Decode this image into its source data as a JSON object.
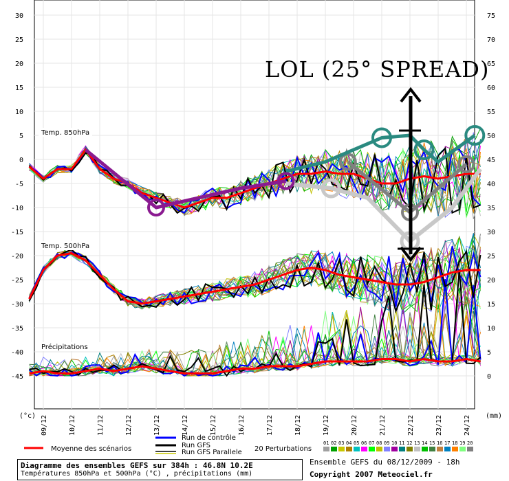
{
  "chart_data": {
    "type": "line",
    "title": "",
    "x_labels": [
      "09/12",
      "10/12",
      "11/12",
      "12/12",
      "13/12",
      "14/12",
      "15/12",
      "16/12",
      "17/12",
      "18/12",
      "19/12",
      "20/12",
      "21/12",
      "22/12",
      "23/12",
      "24/12"
    ],
    "left_axis": {
      "unit": "(°c)",
      "ticks": [
        30,
        25,
        20,
        15,
        10,
        5,
        0,
        -5,
        -10,
        -15,
        -20,
        -25,
        -30,
        -35,
        -40,
        -45
      ],
      "ylim": [
        -45,
        30
      ]
    },
    "right_axis": {
      "unit": "(mm)",
      "ticks": [
        75,
        70,
        65,
        60,
        55,
        50,
        45,
        40,
        35,
        30,
        25,
        20,
        15,
        10,
        5,
        0
      ],
      "ylim": [
        0,
        75
      ]
    },
    "section_labels": {
      "t850": "Temp. 850hPa",
      "t500": "Temp. 500hPa",
      "precip": "Précipitations"
    },
    "annotation": "LOL (25° SPREAD)",
    "x_grid_days": [
      9,
      10,
      11,
      12,
      13,
      14,
      15,
      16,
      17,
      18,
      19,
      20,
      21,
      22,
      23,
      24
    ],
    "series": {
      "t850_mean": {
        "x": [
          8.5,
          9,
          9.5,
          10,
          10.5,
          11,
          11.5,
          12,
          12.5,
          13,
          13.5,
          14,
          14.5,
          15,
          15.5,
          16,
          16.5,
          17,
          17.5,
          18,
          18.5,
          19,
          19.5,
          20,
          20.5,
          21,
          21.5,
          22,
          22.5,
          23,
          23.5,
          24,
          24.5
        ],
        "y": [
          -1.5,
          -4,
          -2,
          -2,
          2,
          -2,
          -4,
          -5,
          -7,
          -8,
          -9,
          -10,
          -9,
          -8,
          -8,
          -7,
          -6,
          -5,
          -4,
          -3,
          -3,
          -2.5,
          -3,
          -3,
          -4,
          -5,
          -5,
          -4,
          -3.5,
          -4,
          -3.5,
          -3,
          -3
        ]
      },
      "t500_mean": {
        "x": [
          8.5,
          9,
          9.5,
          10,
          10.5,
          11,
          11.5,
          12,
          12.5,
          13,
          13.5,
          14,
          14.5,
          15,
          15.5,
          16,
          16.5,
          17,
          17.5,
          18,
          18.5,
          19,
          19.5,
          20,
          20.5,
          21,
          21.5,
          22,
          22.5,
          23,
          23.5,
          24,
          24.5
        ],
        "y": [
          -29,
          -23,
          -20,
          -19.5,
          -21,
          -24,
          -27,
          -29.5,
          -30,
          -29.5,
          -29,
          -28.5,
          -28,
          -27.5,
          -27,
          -26.5,
          -26,
          -25,
          -24,
          -23,
          -22.5,
          -23,
          -24,
          -24.5,
          -25,
          -25.5,
          -26,
          -26,
          -25.5,
          -24.5,
          -23.5,
          -23,
          -23
        ]
      },
      "precip_mean": {
        "x": [
          8.5,
          9,
          9.5,
          10,
          10.5,
          11,
          11.5,
          12,
          12.5,
          13,
          13.5,
          14,
          14.5,
          15,
          15.5,
          16,
          16.5,
          17,
          17.5,
          18,
          18.5,
          19,
          19.5,
          20,
          20.5,
          21,
          21.5,
          22,
          22.5,
          23,
          23.5,
          24,
          24.5
        ],
        "y": [
          0.5,
          1,
          0.5,
          0.5,
          1,
          1.5,
          1,
          1.5,
          2,
          1.5,
          1,
          0.5,
          0.5,
          0.5,
          1,
          1.5,
          1.5,
          2,
          2,
          2,
          2.5,
          3,
          3,
          3,
          3,
          3.5,
          3.5,
          3,
          3.5,
          3,
          3,
          3.5,
          3
        ]
      },
      "annot_purple": {
        "x": [
          10.5,
          13,
          16,
          17.6
        ],
        "y": [
          2,
          -10,
          -6,
          -4.5
        ]
      },
      "annot_teal": {
        "x": [
          17.6,
          19,
          21,
          22,
          22.5,
          23,
          24.3
        ],
        "y": [
          -2.5,
          -0.5,
          4.5,
          5,
          2,
          -0.5,
          5
        ]
      },
      "annot_gray_dark": {
        "x": [
          19.8,
          22,
          24
        ],
        "y": [
          -0.5,
          -11,
          -1
        ]
      },
      "annot_gray_light": {
        "x": [
          17.6,
          19.2,
          20.5,
          22,
          23.5,
          24.5
        ],
        "y": [
          -5,
          -6,
          -8,
          -17,
          -10,
          -2
        ]
      }
    },
    "ensemble_seed": 12345
  },
  "legend": {
    "mean": "Moyenne des scénarios",
    "control": "Run de contrôle",
    "gfs": "Run GFS",
    "gfs_parallel": "Run GFS Parallele",
    "perturb_count": "20 Perturbations",
    "perturb_ids": [
      "01",
      "02",
      "03",
      "04",
      "05",
      "06",
      "07",
      "08",
      "09",
      "10",
      "11",
      "12",
      "13",
      "14",
      "15",
      "16",
      "17",
      "18",
      "19",
      "20"
    ],
    "perturb_colors": [
      "#a0a0a0",
      "#00a000",
      "#c8c800",
      "#b08000",
      "#00c0c0",
      "#ff00ff",
      "#00ff00",
      "#c0c000",
      "#8080ff",
      "#a000a0",
      "#008080",
      "#808000",
      "#c0c0c0",
      "#00c000",
      "#408040",
      "#c08040",
      "#0080c0",
      "#ff8000",
      "#80ff80",
      "#808080"
    ]
  },
  "footer": {
    "line1": "Diagramme des ensembles GEFS sur 384h : 46.8N 10.2E",
    "line2": "Températures 850hPa et 500hPa (°C) , précipitations (mm)",
    "ens_label": "Ensemble GEFS du 08/12/2009 - 18h",
    "copyright": "Copyright 2007 Meteociel.fr"
  }
}
